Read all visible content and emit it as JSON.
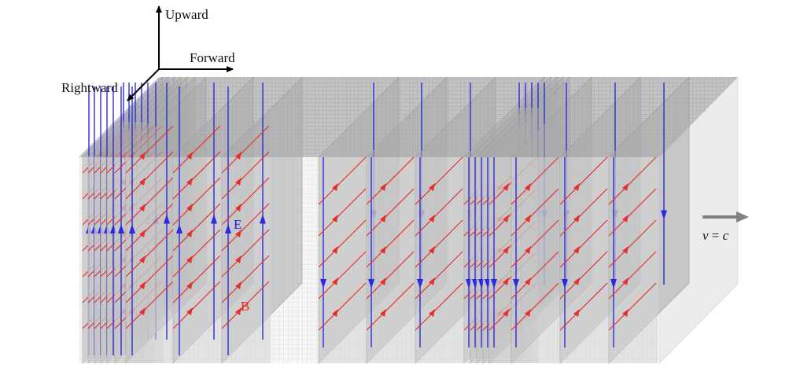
{
  "axes": {
    "upward": "Upward",
    "forward": "Forward",
    "rightward": "Rightward"
  },
  "field_labels": {
    "electric": "E",
    "magnetic": "B"
  },
  "velocity": {
    "v": "v",
    "eq": " = ",
    "c": "c"
  },
  "colors": {
    "electric": "#2a2ae6",
    "magnetic": "#e53030",
    "arrow": "#808080",
    "slab": "#a9a9a9",
    "box_top": "#c6c6c6",
    "box_side": "#eeeeee",
    "grid": "#b0b0b0"
  },
  "pulse": {
    "front_a_sheets": 9,
    "front_b_sheets": 10,
    "front_a_direction": "up",
    "front_b_direction": "down"
  }
}
